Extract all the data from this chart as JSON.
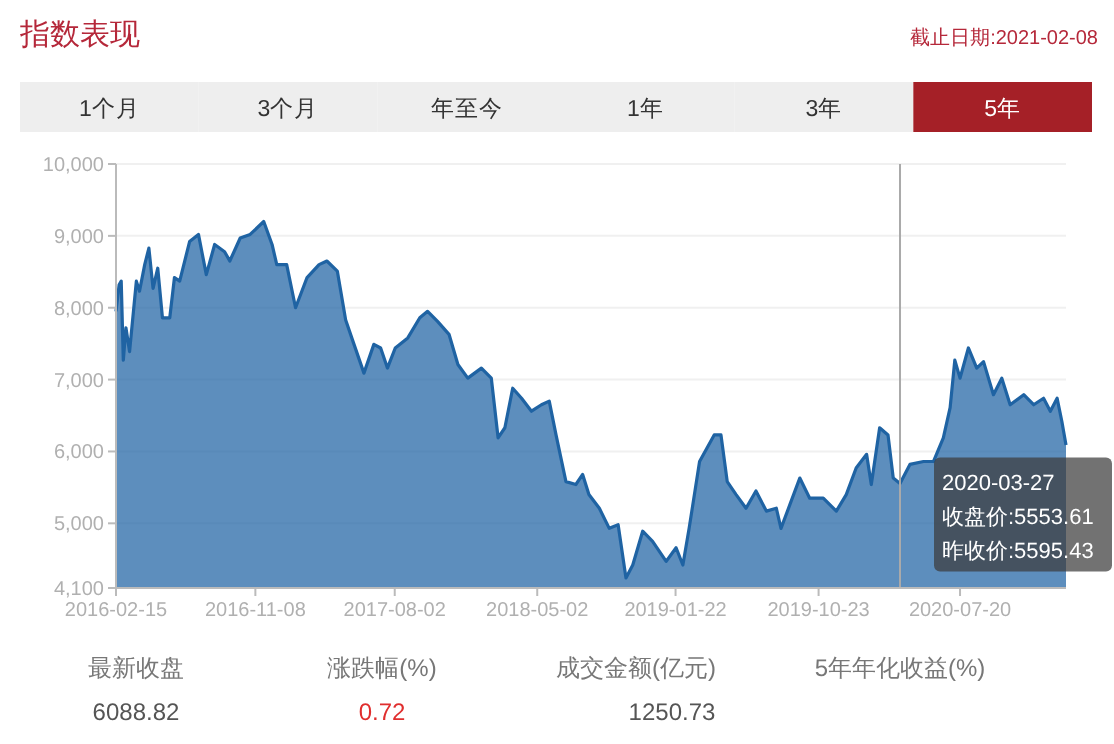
{
  "chart_data": {
    "type": "area",
    "title": "指数表现",
    "x": [
      "2016-02-15",
      "2016-02-21",
      "2016-02-25",
      "2016-02-29",
      "2016-03-05",
      "2016-03-12",
      "2016-03-25",
      "2016-03-31",
      "2016-04-10",
      "2016-04-18",
      "2016-04-26",
      "2016-05-05",
      "2016-05-14",
      "2016-05-28",
      "2016-06-06",
      "2016-06-16",
      "2016-07-05",
      "2016-07-22",
      "2016-08-06",
      "2016-08-22",
      "2016-09-10",
      "2016-09-20",
      "2016-10-10",
      "2016-10-29",
      "2016-11-24",
      "2016-12-10",
      "2016-12-19",
      "2017-01-07",
      "2017-01-24",
      "2017-02-15",
      "2017-03-10",
      "2017-03-25",
      "2017-04-14",
      "2017-04-30",
      "2017-05-16",
      "2017-06-04",
      "2017-06-23",
      "2017-07-06",
      "2017-07-19",
      "2017-08-03",
      "2017-08-27",
      "2017-09-19",
      "2017-10-04",
      "2017-10-23",
      "2017-11-14",
      "2017-12-01",
      "2017-12-20",
      "2018-01-15",
      "2018-02-03",
      "2018-02-16",
      "2018-03-01",
      "2018-03-16",
      "2018-04-02",
      "2018-04-21",
      "2018-05-10",
      "2018-05-25",
      "2018-06-07",
      "2018-06-26",
      "2018-07-15",
      "2018-07-28",
      "2018-08-09",
      "2018-08-29",
      "2018-09-17",
      "2018-10-04",
      "2018-10-19",
      "2018-11-01",
      "2018-11-20",
      "2018-12-09",
      "2019-01-04",
      "2019-01-23",
      "2019-02-05",
      "2019-02-17",
      "2019-03-09",
      "2019-04-06",
      "2019-04-19",
      "2019-05-01",
      "2019-05-18",
      "2019-06-06",
      "2019-06-25",
      "2019-07-15",
      "2019-08-03",
      "2019-08-12",
      "2019-08-29",
      "2019-09-17",
      "2019-10-06",
      "2019-11-01",
      "2019-11-26",
      "2019-12-15",
      "2020-01-03",
      "2020-01-23",
      "2020-02-01",
      "2020-02-17",
      "2020-03-04",
      "2020-03-14",
      "2020-03-27",
      "2020-04-15",
      "2020-05-11",
      "2020-05-30",
      "2020-06-18",
      "2020-07-01",
      "2020-07-10",
      "2020-07-20",
      "2020-08-05",
      "2020-08-21",
      "2020-09-03",
      "2020-09-22",
      "2020-10-08",
      "2020-10-24",
      "2020-11-19",
      "2020-12-08",
      "2020-12-27",
      "2021-01-09",
      "2021-01-22",
      "2021-01-31",
      "2021-02-08"
    ],
    "series": [
      {
        "color": "#1f63a3",
        "values": [
          7950,
          8320,
          8370,
          7270,
          7720,
          7390,
          8370,
          8230,
          8600,
          8830,
          8270,
          8550,
          7860,
          7860,
          8420,
          8370,
          8920,
          9020,
          8460,
          8880,
          8780,
          8650,
          8970,
          9020,
          9200,
          8880,
          8600,
          8600,
          8000,
          8420,
          8600,
          8650,
          8510,
          7830,
          7490,
          7090,
          7490,
          7440,
          7160,
          7440,
          7580,
          7860,
          7950,
          7810,
          7630,
          7210,
          7020,
          7160,
          7020,
          6190,
          6330,
          6880,
          6740,
          6560,
          6650,
          6700,
          6230,
          5580,
          5540,
          5680,
          5400,
          5210,
          4930,
          4980,
          4240,
          4420,
          4890,
          4750,
          4470,
          4660,
          4420,
          4930,
          5860,
          6230,
          6230,
          5580,
          5400,
          5210,
          5450,
          5170,
          5210,
          4930,
          5260,
          5630,
          5350,
          5350,
          5170,
          5400,
          5770,
          5960,
          5540,
          6330,
          6230,
          5630,
          5553.61,
          5820,
          5860,
          5860,
          6190,
          6610,
          7270,
          7020,
          7440,
          7160,
          7250,
          6790,
          7020,
          6650,
          6790,
          6650,
          6740,
          6560,
          6740,
          6420,
          6088.82
        ]
      }
    ],
    "xlim": [
      "2016-02-15",
      "2021-02-08"
    ],
    "xticks": [
      "2016-02-15",
      "2016-11-08",
      "2017-08-02",
      "2018-05-02",
      "2019-01-22",
      "2019-10-23",
      "2020-07-20"
    ],
    "ylim": [
      4100,
      10000
    ],
    "yticks": [
      {
        "value": 4100,
        "label": "4,100"
      },
      {
        "value": 5000,
        "label": "5,000"
      },
      {
        "value": 6000,
        "label": "6,000"
      },
      {
        "value": 7000,
        "label": "7,000"
      },
      {
        "value": 8000,
        "label": "8,000"
      },
      {
        "value": 9000,
        "label": "9,000"
      },
      {
        "value": 10000,
        "label": "10,000"
      }
    ],
    "grid": "y",
    "ref_lines": [
      {
        "axis": "x",
        "value": "2020-03-27",
        "label": null,
        "color": "#aaaaaa"
      }
    ],
    "annotations": [
      {
        "text": "2020-03-27\n收盘价:5553.61\n昨收价:5595.43",
        "x": "2020-03-27",
        "y": 5553.61
      },
      "截止日期:2021-02-08",
      "1个月",
      "3个月",
      "年至今",
      "1年",
      "3年",
      "5年",
      "最新收盘",
      "6088.82",
      "涨跌幅(%)",
      "0.72",
      "成交金额(亿元)",
      "1250.73",
      "5年年化收益(%)"
    ]
  }
}
